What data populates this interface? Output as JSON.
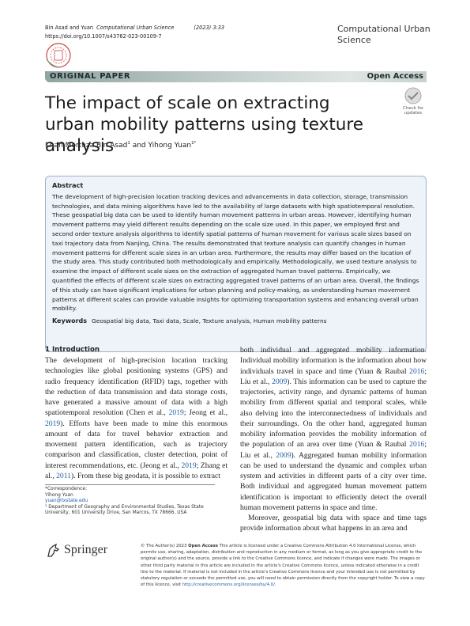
{
  "header": {
    "running": [
      "Bin Asad and Yuan",
      "Computational Urban Science",
      "(2023) 3:33"
    ],
    "doi": "https://doi.org/10.1007/s43762-023-00109-7",
    "journal": "Computational Urban Science"
  },
  "banner": {
    "type": "ORIGINAL PAPER",
    "access": "Open Access"
  },
  "article": {
    "title": "The impact of scale on extracting urban mobility patterns using texture analysis",
    "check": "Check for updates",
    "authors": [
      {
        "name": "Khan Mortuza Bin Asad",
        "sup": "1"
      },
      {
        "joiner": "and",
        "name": "Yihong Yuan",
        "sup": "1*"
      }
    ]
  },
  "abstract": {
    "heading": "Abstract",
    "text": "The development of high-precision location tracking devices and advancements in data collection, storage, transmission technologies, and data mining algorithms have led to the availability of large datasets with high spatiotemporal resolution. These geospatial big data can be used to identify human movement patterns in urban areas. However, identifying human movement patterns may yield different results depending on the scale size used. In this paper, we employed first and second order texture analysis algorithms to identify spatial patterns of human movement for various scale sizes based on taxi trajectory data from Nanjing, China. The results demonstrated that texture analysis can quantify changes in human movement patterns for different scale sizes in an urban area. Furthermore, the results may differ based on the location of the study area. This study contributed both methodologically and empirically. Methodologically, we used texture analysis to examine the impact of different scale sizes on the extraction of aggregated human travel patterns. Empirically, we quantified the effects of different scale sizes on extracting aggregated travel patterns of an urban area. Overall, the findings of this study can have significant implications for urban planning and policy-making, as understanding human movement patterns at different scales can provide valuable insights for optimizing transportation systems and enhancing overall urban mobility.",
    "keywords_label": "Keywords",
    "keywords": "Geospatial big data, Taxi data, Scale, Texture analysis, Human mobility patterns"
  },
  "body": {
    "heading": "1 Introduction",
    "left": [
      [
        "The development of high-precision location tracking technologies like global positioning systems (GPS) and radio frequency identification (RFID) tags, together with the reduction of data transmission and data storage costs, have generated a massive amount of data with a high spatiotemporal resolution (Chen et al., ",
        "2019",
        "; Jeong et al., ",
        "2019",
        "). Efforts have been made to mine this enormous amount of data for travel behavior extraction and movement pattern identification, such as trajectory comparison and classification, cluster detection, point of interest recommendations, etc. (Jeong et al., ",
        "2019",
        "; Zhang et al., ",
        "2011",
        "). From these big geodata, it is possible to extract"
      ]
    ],
    "right": [
      [
        "both individual and aggregated mobility information. Individual mobility information is the information about how individuals travel in space and time (Yuan & Raubal ",
        "2016",
        "; Liu et al., ",
        "2009",
        "). This information can be used to capture the trajectories, activity range, and dynamic patterns of human mobility from different spatial and temporal scales, while also delving into the interconnectedness of individuals and their surroundings. On the other hand, aggregated human mobility information provides the mobility information of the population of an area over time (Yuan & Raubal ",
        "2016",
        "; Liu et al., ",
        "2009",
        "). Aggregated human mobility information can be used to understand the dynamic and complex urban system and activities in different parts of a city over time. Both individual and aggregated human movement pattern identification is important to efficiently detect the overall human movement patterns in space and time."
      ],
      [
        "Moreover, geospatial big data with space and time tags provide information about what happens in an area and"
      ]
    ]
  },
  "footnotes": [
    "*Correspondence:",
    "Yihong Yuan",
    "yuan@txstate.edu",
    "¹ Department of Geography and Environmental Studies, Texas State University, 601 University Drive, San Marcos, TX 78666, USA"
  ],
  "footer": {
    "publisher": "Springer",
    "copyright": "© The Author(s) 2023",
    "oa": "Open Access",
    "license": "This article is licensed under a Creative Commons Attribution 4.0 International License, which permits use, sharing, adaptation, distribution and reproduction in any medium or format, as long as you give appropriate credit to the original author(s) and the source, provide a link to the Creative Commons licence, and indicate if changes were made. The images or other third party material in this article are included in the article's Creative Commons licence, unless indicated otherwise in a credit line to the material. If material is not included in the article's Creative Commons licence and your intended use is not permitted by statutory regulation or exceeds the permitted use, you will need to obtain permission directly from the copyright holder. To view a copy of this licence, visit ",
    "url": "http://creativecommons.org/licenses/by/4.0/",
    "end": "."
  }
}
